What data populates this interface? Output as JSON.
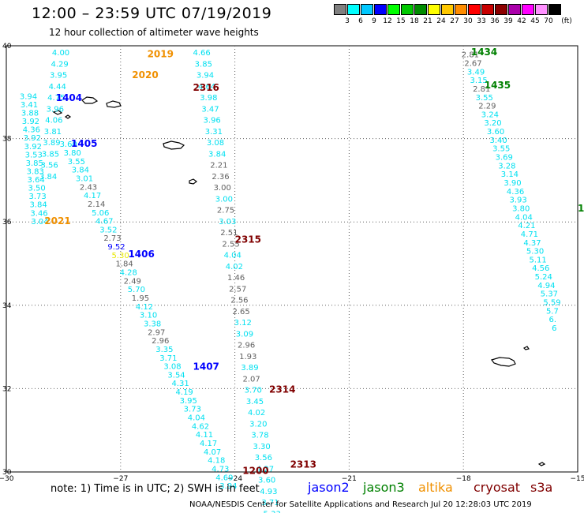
{
  "header": {
    "title": "12:00 – 23:59 UTC 07/19/2019",
    "subtitle": "12 hour collection of altimeter wave heights"
  },
  "colorbar": {
    "unit": "(ft)",
    "bins": [
      {
        "label": "3",
        "color": "#808080"
      },
      {
        "label": "6",
        "color": "#00ffff"
      },
      {
        "label": "9",
        "color": "#00c8ff"
      },
      {
        "label": "12",
        "color": "#0000ff"
      },
      {
        "label": "15",
        "color": "#00ff00"
      },
      {
        "label": "18",
        "color": "#00c800"
      },
      {
        "label": "21",
        "color": "#008c00"
      },
      {
        "label": "24",
        "color": "#ffff00"
      },
      {
        "label": "27",
        "color": "#ffc800"
      },
      {
        "label": "30",
        "color": "#ff8c00"
      },
      {
        "label": "33",
        "color": "#ff0000"
      },
      {
        "label": "36",
        "color": "#c80000"
      },
      {
        "label": "39",
        "color": "#8c0000"
      },
      {
        "label": "42",
        "color": "#aa00aa"
      },
      {
        "label": "45",
        "color": "#ff00ff"
      },
      {
        "label": "70",
        "color": "#ff90ff"
      },
      {
        "label": "",
        "color": "#000000"
      }
    ]
  },
  "axes": {
    "lat_labels": [
      "40",
      "38",
      "36",
      "34",
      "32",
      "30"
    ],
    "lon_labels": [
      "−30",
      "−27",
      "−24",
      "−21",
      "−18",
      "−15"
    ]
  },
  "colors": {
    "cyan": "#00e0f0",
    "gray": "#606060",
    "blue": "#0000ff",
    "green": "#008000",
    "orange": "#f09000",
    "darkred": "#800000",
    "yellow": "#e8e800",
    "grid": "#606060"
  },
  "pass_labels": [
    {
      "text": "2019",
      "color": "orange",
      "lat": 39.95,
      "lon": -26.3
    },
    {
      "text": "2020",
      "color": "orange",
      "lat": 39.45,
      "lon": -26.7
    },
    {
      "text": "1404",
      "color": "blue",
      "lat": 38.9,
      "lon": -28.7
    },
    {
      "text": "1405",
      "color": "blue",
      "lat": 37.8,
      "lon": -28.3
    },
    {
      "text": "2021",
      "color": "orange",
      "lat": 35.95,
      "lon": -29.0
    },
    {
      "text": "1406",
      "color": "blue",
      "lat": 35.15,
      "lon": -26.8
    },
    {
      "text": "1407",
      "color": "blue",
      "lat": 32.45,
      "lon": -25.1
    },
    {
      "text": "2316",
      "color": "darkred",
      "lat": 39.15,
      "lon": -25.1
    },
    {
      "text": "2315",
      "color": "darkred",
      "lat": 35.5,
      "lon": -24.0
    },
    {
      "text": "2314",
      "color": "darkred",
      "lat": 31.9,
      "lon": -23.1
    },
    {
      "text": "2313",
      "color": "darkred",
      "lat": 30.1,
      "lon": -22.55
    },
    {
      "text": "1200",
      "color": "darkred",
      "lat": 29.95,
      "lon": -23.8
    },
    {
      "text": "1434",
      "color": "green",
      "lat": 40.0,
      "lon": -17.8
    },
    {
      "text": "1435",
      "color": "green",
      "lat": 39.2,
      "lon": -17.45
    },
    {
      "text": "1436",
      "color": "green",
      "lat": 36.25,
      "lon": -15.0
    }
  ],
  "tracks": [
    {
      "id": "2019",
      "lat_start": 40.0,
      "lon_start": -28.8,
      "lat_step": -0.27,
      "lon_step": -0.03,
      "points": [
        [
          "4.00",
          "cyan"
        ],
        [
          "4.29",
          "cyan"
        ],
        [
          "3.95",
          "cyan"
        ],
        [
          "4.44",
          "cyan"
        ],
        [
          "4.75",
          "cyan"
        ],
        [
          "3.96",
          "cyan"
        ],
        [
          "4.06",
          "cyan"
        ],
        [
          "3.81",
          "cyan"
        ],
        [
          "3.89",
          "cyan"
        ],
        [
          "3.85",
          "cyan"
        ],
        [
          "3.56",
          "cyan"
        ],
        [
          "3.84",
          "cyan"
        ]
      ]
    },
    {
      "id": "1404",
      "lat_start": 38.95,
      "lon_start": -29.65,
      "lat_step": -0.2,
      "lon_step": 0.02,
      "points": [
        [
          "3.94",
          "cyan"
        ],
        [
          "3.41",
          "cyan"
        ],
        [
          "3.88",
          "cyan"
        ],
        [
          "3.92",
          "cyan"
        ],
        [
          "4.36",
          "cyan"
        ],
        [
          "3.92",
          "cyan"
        ],
        [
          "3.92",
          "cyan"
        ],
        [
          "3.53",
          "cyan"
        ],
        [
          "3.85",
          "cyan"
        ],
        [
          "3.83",
          "cyan"
        ],
        [
          "3.64",
          "cyan"
        ],
        [
          "3.50",
          "cyan"
        ],
        [
          "3.73",
          "cyan"
        ],
        [
          "3.84",
          "cyan"
        ],
        [
          "3.46",
          "cyan"
        ],
        [
          "3.04",
          "cyan"
        ]
      ]
    },
    {
      "id": "2020_lower",
      "lat_start": 37.8,
      "lon_start": -28.6,
      "lat_step": -0.205,
      "lon_step": 0.105,
      "points": [
        [
          "3.60",
          "cyan"
        ],
        [
          "3.80",
          "cyan"
        ],
        [
          "3.55",
          "cyan"
        ],
        [
          "3.84",
          "cyan"
        ],
        [
          "3.01",
          "cyan"
        ],
        [
          "2.43",
          "gray"
        ],
        [
          "4.17",
          "cyan"
        ],
        [
          "2.14",
          "gray"
        ],
        [
          "5.06",
          "cyan"
        ],
        [
          "4.67",
          "cyan"
        ],
        [
          "3.52",
          "cyan"
        ],
        [
          "2.73",
          "gray"
        ],
        [
          "9.52",
          "blue"
        ],
        [
          "5.30",
          "yellow"
        ],
        [
          "1.84",
          "gray"
        ],
        [
          "4.28",
          "cyan"
        ],
        [
          "2.49",
          "gray"
        ],
        [
          "5.70",
          "cyan"
        ],
        [
          "1.95",
          "gray"
        ],
        [
          "4.12",
          "cyan"
        ],
        [
          "3.10",
          "cyan"
        ],
        [
          "3.38",
          "cyan"
        ],
        [
          "2.97",
          "gray"
        ],
        [
          "2.96",
          "gray"
        ],
        [
          "3.35",
          "cyan"
        ],
        [
          "3.71",
          "cyan"
        ],
        [
          "3.08",
          "cyan"
        ],
        [
          "3.54",
          "cyan"
        ],
        [
          "4.31",
          "cyan"
        ],
        [
          "4.19",
          "cyan"
        ],
        [
          "3.95",
          "cyan"
        ],
        [
          "3.73",
          "cyan"
        ],
        [
          "4.04",
          "cyan"
        ],
        [
          "4.62",
          "cyan"
        ],
        [
          "4.11",
          "cyan"
        ],
        [
          "4.17",
          "cyan"
        ],
        [
          "4.07",
          "cyan"
        ],
        [
          "4.18",
          "cyan"
        ],
        [
          "4.73",
          "cyan"
        ],
        [
          "4.69",
          "cyan"
        ],
        [
          "3.94",
          "cyan"
        ]
      ]
    },
    {
      "id": "2316",
      "lat_start": 40.0,
      "lon_start": -25.1,
      "lat_step": -0.27,
      "lon_step": 0.045,
      "points": [
        [
          "4.66",
          "cyan"
        ],
        [
          "3.85",
          "cyan"
        ],
        [
          "3.94",
          "cyan"
        ],
        [
          "4.64",
          "cyan"
        ],
        [
          "3.98",
          "cyan"
        ],
        [
          "3.47",
          "cyan"
        ],
        [
          "3.96",
          "cyan"
        ],
        [
          "3.31",
          "cyan"
        ],
        [
          "3.08",
          "cyan"
        ],
        [
          "3.84",
          "cyan"
        ],
        [
          "2.21",
          "gray"
        ],
        [
          "2.36",
          "gray"
        ],
        [
          "3.00",
          "gray"
        ],
        [
          "3.00",
          "cyan"
        ],
        [
          "2.75",
          "gray"
        ],
        [
          "3.03",
          "cyan"
        ],
        [
          "2.51",
          "gray"
        ],
        [
          "2.55",
          "gray"
        ],
        [
          "4.04",
          "cyan"
        ],
        [
          "4.02",
          "cyan"
        ],
        [
          "1.46",
          "gray"
        ],
        [
          "2.57",
          "gray"
        ],
        [
          "2.56",
          "gray"
        ],
        [
          "2.65",
          "gray"
        ],
        [
          "3.12",
          "cyan"
        ],
        [
          "3.09",
          "cyan"
        ],
        [
          "2.96",
          "gray"
        ],
        [
          "1.93",
          "gray"
        ],
        [
          "3.89",
          "cyan"
        ],
        [
          "2.07",
          "gray"
        ],
        [
          "3.70",
          "cyan"
        ],
        [
          "3.45",
          "cyan"
        ],
        [
          "4.02",
          "cyan"
        ],
        [
          "3.20",
          "cyan"
        ],
        [
          "3.78",
          "cyan"
        ],
        [
          "3.30",
          "cyan"
        ],
        [
          "3.56",
          "cyan"
        ],
        [
          "4.27",
          "cyan"
        ],
        [
          "3.60",
          "cyan"
        ],
        [
          "4.93",
          "cyan"
        ],
        [
          "3.71",
          "cyan"
        ],
        [
          "5.33",
          "cyan"
        ],
        [
          "4.93",
          "cyan"
        ]
      ]
    },
    {
      "id": "1434",
      "lat_start": 39.95,
      "lon_start": -18.05,
      "lat_step": -0.205,
      "lon_step": 0.074,
      "points": [
        [
          "2.81",
          "gray"
        ],
        [
          "2.67",
          "gray"
        ],
        [
          "3.49",
          "cyan"
        ],
        [
          "3.15",
          "cyan"
        ],
        [
          "2.81",
          "gray"
        ],
        [
          "3.55",
          "cyan"
        ],
        [
          "2.29",
          "gray"
        ],
        [
          "3.24",
          "cyan"
        ],
        [
          "3.20",
          "cyan"
        ],
        [
          "3.60",
          "cyan"
        ],
        [
          "3.40",
          "cyan"
        ],
        [
          "3.55",
          "cyan"
        ],
        [
          "3.69",
          "cyan"
        ],
        [
          "3.28",
          "cyan"
        ],
        [
          "3.14",
          "cyan"
        ],
        [
          "3.90",
          "cyan"
        ],
        [
          "4.36",
          "cyan"
        ],
        [
          "3.93",
          "cyan"
        ],
        [
          "3.80",
          "cyan"
        ],
        [
          "4.04",
          "cyan"
        ],
        [
          "4.21",
          "cyan"
        ],
        [
          "4.71",
          "cyan"
        ],
        [
          "4.37",
          "cyan"
        ],
        [
          "5.30",
          "cyan"
        ],
        [
          "5.11",
          "cyan"
        ],
        [
          "4.56",
          "cyan"
        ],
        [
          "5.24",
          "cyan"
        ],
        [
          "4.94",
          "cyan"
        ],
        [
          "5.37",
          "cyan"
        ],
        [
          "5.59",
          "cyan"
        ],
        [
          "5.7",
          "cyan"
        ],
        [
          "6.",
          "cyan"
        ],
        [
          "6",
          "cyan"
        ]
      ]
    }
  ],
  "footer": {
    "note": "note:  1) Time is in UTC;  2) SWH is in feet",
    "satellites": [
      {
        "name": "jason2",
        "color": "blue"
      },
      {
        "name": "jason3",
        "color": "green"
      },
      {
        "name": "altika",
        "color": "orange"
      },
      {
        "name": "cryosat",
        "color": "darkred"
      },
      {
        "name": "s3a",
        "color": "darkred"
      }
    ],
    "credit": "NOAA/NESDIS Center for Satellite Applications and Research    Jul 20 12:28:03 UTC 2019"
  }
}
